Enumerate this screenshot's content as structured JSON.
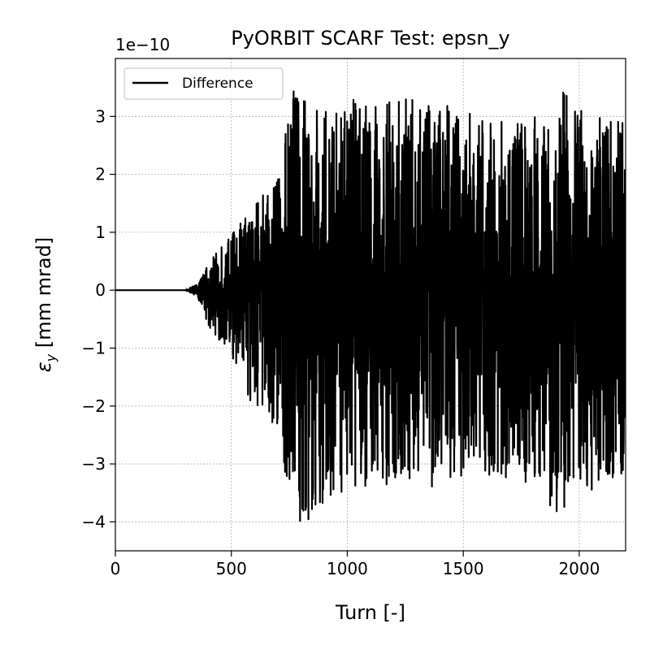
{
  "chart_data": {
    "type": "line",
    "title": "PyORBIT SCARF Test: epsn_y",
    "xlabel": "Turn [-]",
    "ylabel_main": "ε",
    "ylabel_sub": "y",
    "ylabel_rest": " [mm mrad]",
    "y_offset_label": "1e−10",
    "xlim": [
      0,
      2200
    ],
    "ylim": [
      -4.5,
      4.0
    ],
    "x_ticks": [
      0,
      500,
      1000,
      1500,
      2000
    ],
    "x_tick_labels": [
      "0",
      "500",
      "1000",
      "1500",
      "2000"
    ],
    "y_ticks": [
      -4,
      -3,
      -2,
      -1,
      0,
      1,
      2,
      3
    ],
    "y_tick_labels": [
      "−4",
      "−3",
      "−2",
      "−1",
      "0",
      "1",
      "2",
      "3"
    ],
    "grid": true,
    "legend_position": "top-left",
    "series": [
      {
        "name": "Difference",
        "color": "#000000",
        "x_start": 0,
        "x_end": 2200,
        "envelope_points": [
          [
            0,
            0.0
          ],
          [
            300,
            0.0
          ],
          [
            350,
            0.1
          ],
          [
            400,
            0.45
          ],
          [
            500,
            1.0
          ],
          [
            600,
            1.5
          ],
          [
            700,
            2.0
          ],
          [
            770,
            3.6
          ],
          [
            900,
            3.4
          ],
          [
            1000,
            3.3
          ],
          [
            1200,
            3.3
          ],
          [
            1400,
            3.3
          ],
          [
            1600,
            3.0
          ],
          [
            1800,
            3.0
          ],
          [
            1920,
            3.5
          ],
          [
            2100,
            3.2
          ],
          [
            2200,
            3.4
          ]
        ],
        "lower_envelope_points": [
          [
            0,
            0.0
          ],
          [
            300,
            0.0
          ],
          [
            350,
            -0.1
          ],
          [
            400,
            -0.6
          ],
          [
            500,
            -1.2
          ],
          [
            600,
            -2.1
          ],
          [
            700,
            -2.4
          ],
          [
            770,
            -4.1
          ],
          [
            900,
            -3.8
          ],
          [
            1000,
            -3.4
          ],
          [
            1200,
            -3.4
          ],
          [
            1400,
            -3.4
          ],
          [
            1600,
            -3.2
          ],
          [
            1800,
            -3.4
          ],
          [
            1910,
            -4.0
          ],
          [
            2100,
            -3.3
          ],
          [
            2200,
            -3.3
          ]
        ]
      }
    ]
  }
}
